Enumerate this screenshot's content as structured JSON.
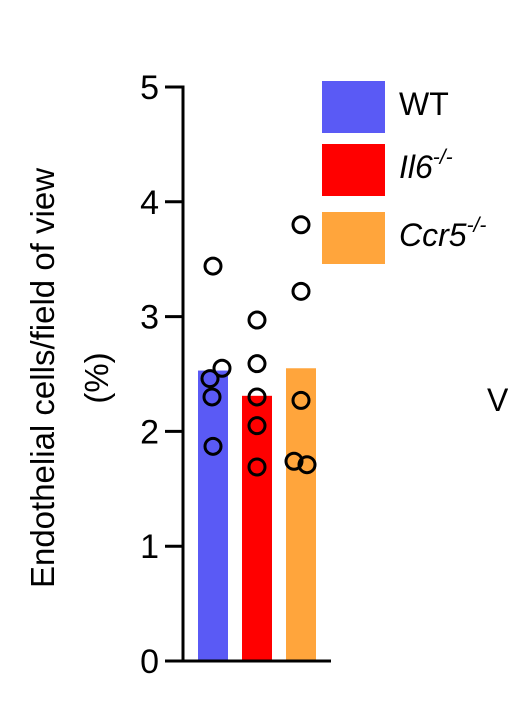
{
  "chart_data": {
    "type": "bar",
    "title": "",
    "xlabel": "",
    "ylabel": "Endothelial cells/field of view",
    "ylabel_unit": "(%)",
    "ylim": [
      0,
      5
    ],
    "yticks": [
      "0",
      "1",
      "2",
      "3",
      "4",
      "5"
    ],
    "grid": false,
    "legend_position": "top-right",
    "series": [
      {
        "name": "WT",
        "legend_base": "WT",
        "legend_sup": "",
        "italic": false,
        "color": "#5a5af5",
        "value": 2.53,
        "points": [
          3.44,
          2.55,
          2.46,
          2.3,
          1.87
        ]
      },
      {
        "name": "Il6-/-",
        "legend_base": "Il6",
        "legend_sup": "-/-",
        "italic": true,
        "color": "#ff0000",
        "value": 2.31,
        "points": [
          2.97,
          2.59,
          2.3,
          2.05,
          1.69
        ]
      },
      {
        "name": "Ccr5-/-",
        "legend_base": "Ccr5",
        "legend_sup": "-/-",
        "italic": true,
        "color": "#ffa53c",
        "value": 2.55,
        "points": [
          3.8,
          3.22,
          2.27,
          1.74,
          1.71
        ]
      }
    ],
    "annotations": [
      "V"
    ]
  }
}
